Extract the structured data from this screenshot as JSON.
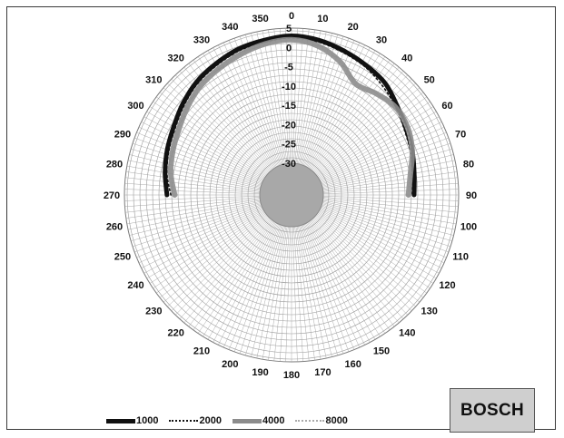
{
  "chart_data": {
    "type": "polar",
    "angle_labels": [
      "0",
      "10",
      "20",
      "30",
      "40",
      "50",
      "60",
      "70",
      "80",
      "90",
      "100",
      "110",
      "120",
      "130",
      "140",
      "150",
      "160",
      "170",
      "180",
      "190",
      "200",
      "210",
      "220",
      "230",
      "240",
      "250",
      "260",
      "270",
      "280",
      "290",
      "300",
      "310",
      "320",
      "330",
      "340",
      "350"
    ],
    "radial_labels": [
      "5",
      "0",
      "-5",
      "-10",
      "-15",
      "-20",
      "-25",
      "-30"
    ],
    "rlim": [
      -30,
      5
    ],
    "grid": true,
    "legend_position": "bottom-left",
    "series": [
      {
        "name": "1000",
        "color": "#111111",
        "style": "solid",
        "angles": [
          -90,
          -80,
          -70,
          -60,
          -50,
          -40,
          -30,
          -20,
          -10,
          0,
          10,
          20,
          30,
          40,
          50,
          60,
          70,
          80,
          90
        ],
        "values": [
          -6,
          -5,
          -4,
          -3,
          -1.5,
          0,
          1,
          2,
          2.5,
          3,
          2.5,
          1.5,
          0.5,
          -0.5,
          -2.5,
          -4,
          -5,
          -6,
          -6.5
        ]
      },
      {
        "name": "2000",
        "color": "#111111",
        "style": "dotted",
        "angles": [
          -90,
          -80,
          -70,
          -60,
          -50,
          -40,
          -30,
          -20,
          -10,
          0,
          10,
          20,
          30,
          40,
          50,
          60,
          70,
          80,
          90
        ],
        "values": [
          -7,
          -5.5,
          -4.5,
          -3.5,
          -2,
          -0.5,
          0.5,
          1.5,
          2,
          2.5,
          2,
          1,
          0,
          -1.5,
          -3,
          -4.5,
          -5.5,
          -6.5,
          -7
        ]
      },
      {
        "name": "4000",
        "color": "#8c8c8c",
        "style": "solid",
        "angles": [
          -90,
          -80,
          -70,
          -60,
          -50,
          -40,
          -30,
          -20,
          -10,
          0,
          10,
          20,
          30,
          40,
          50,
          60,
          70,
          80,
          90
        ],
        "values": [
          -8,
          -6.5,
          -5.5,
          -4.5,
          -3,
          -1.5,
          -0.5,
          0.5,
          1.5,
          2,
          1,
          -1.5,
          -5,
          -4,
          -3,
          -3.5,
          -5,
          -7,
          -8
        ]
      },
      {
        "name": "8000",
        "color": "#9a9a9a",
        "style": "dotted",
        "angles": [
          -90,
          -80,
          -70,
          -60,
          -50,
          -40,
          -30,
          -20,
          -10,
          0,
          10,
          20,
          30,
          40,
          50,
          60,
          70,
          80,
          90
        ],
        "values": [
          -8.5,
          -7,
          -6,
          -5,
          -3.5,
          -2,
          -1,
          0,
          1,
          1.5,
          0.5,
          -2,
          -5.5,
          -4.5,
          -3.5,
          -4,
          -5.5,
          -7.5,
          -8.5
        ]
      }
    ]
  },
  "legend": [
    {
      "label": "1000",
      "color": "#111111",
      "style": "solid"
    },
    {
      "label": "2000",
      "color": "#111111",
      "style": "dotted"
    },
    {
      "label": "4000",
      "color": "#8c8c8c",
      "style": "solid"
    },
    {
      "label": "8000",
      "color": "#9a9a9a",
      "style": "dotted"
    }
  ],
  "logo": {
    "text": "BOSCH"
  }
}
